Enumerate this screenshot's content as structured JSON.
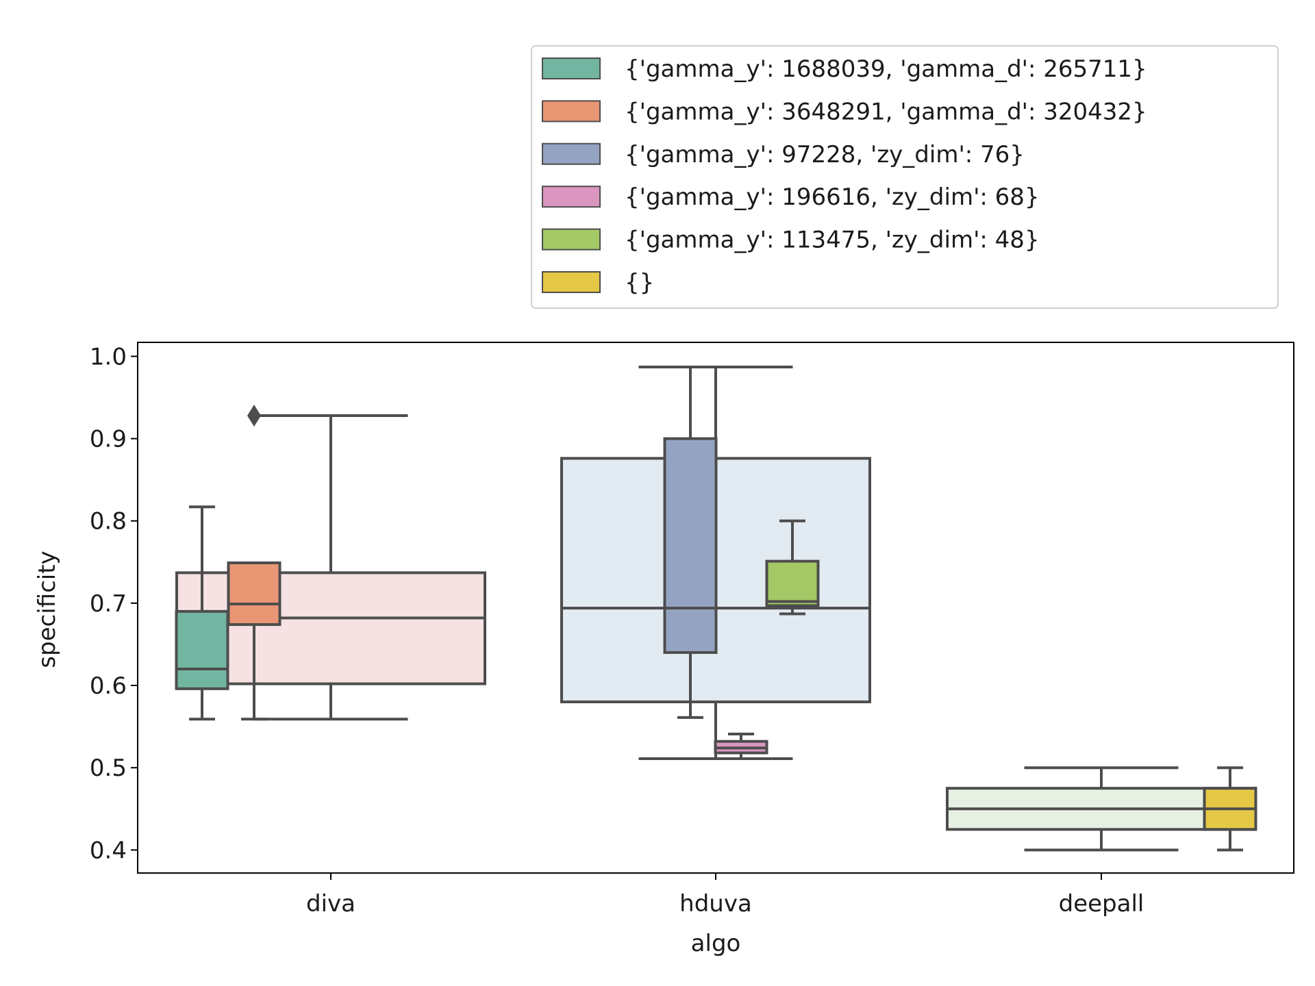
{
  "chart_data": {
    "type": "boxplot",
    "xlabel": "algo",
    "ylabel": "specificity",
    "categories": [
      "diva",
      "hduva",
      "deepall"
    ],
    "ylim": [
      0.372,
      1.017
    ],
    "yticks": [
      0.4,
      0.5,
      0.6,
      0.7,
      0.8,
      0.9,
      1.0
    ],
    "ytick_labels": [
      "0.4",
      "0.5",
      "0.6",
      "0.7",
      "0.8",
      "0.9",
      "1.0"
    ],
    "grid": false,
    "legend_position": "top-right, above plot",
    "legend": [
      {
        "label": "{'gamma_y': 1688039, 'gamma_d': 265711}",
        "color": "#72b6a1"
      },
      {
        "label": "{'gamma_y': 3648291, 'gamma_d': 320432}",
        "color": "#e99675"
      },
      {
        "label": "{'gamma_y': 97228, 'zy_dim': 76}",
        "color": "#95a3c3"
      },
      {
        "label": "{'gamma_y': 196616, 'zy_dim': 68}",
        "color": "#db96c0"
      },
      {
        "label": "{'gamma_y': 113475, 'zy_dim': 48}",
        "color": "#a4c865"
      },
      {
        "label": "{}",
        "color": "#e5c845"
      }
    ],
    "overall_boxes": [
      {
        "category": "diva",
        "color": "#f6e2e2",
        "whislo": 0.559,
        "q1": 0.602,
        "med": 0.682,
        "q3": 0.737,
        "whishi": 0.928,
        "fliers": []
      },
      {
        "category": "hduva",
        "color": "#e2eaf2",
        "whislo": 0.511,
        "q1": 0.58,
        "med": 0.694,
        "q3": 0.876,
        "whishi": 0.987,
        "fliers": []
      },
      {
        "category": "deepall",
        "color": "#e6f1e4",
        "whislo": 0.4,
        "q1": 0.425,
        "med": 0.45,
        "q3": 0.475,
        "whishi": 0.5,
        "fliers": []
      }
    ],
    "series": [
      {
        "name": "{'gamma_y': 1688039, 'gamma_d': 265711}",
        "color": "#72b6a1",
        "category": "diva",
        "whislo": 0.559,
        "q1": 0.596,
        "med": 0.62,
        "q3": 0.69,
        "whishi": 0.817,
        "fliers": []
      },
      {
        "name": "{'gamma_y': 3648291, 'gamma_d': 320432}",
        "color": "#e99675",
        "category": "diva",
        "whislo": 0.559,
        "q1": 0.674,
        "med": 0.699,
        "q3": 0.749,
        "whishi": 0.749,
        "fliers": [
          0.928
        ]
      },
      {
        "name": "{'gamma_y': 97228, 'zy_dim': 76}",
        "color": "#95a3c3",
        "category": "hduva",
        "whislo": 0.561,
        "q1": 0.64,
        "med": 0.694,
        "q3": 0.9,
        "whishi": 0.987,
        "fliers": []
      },
      {
        "name": "{'gamma_y': 196616, 'zy_dim': 68}",
        "color": "#db96c0",
        "category": "hduva",
        "whislo": 0.511,
        "q1": 0.518,
        "med": 0.524,
        "q3": 0.532,
        "whishi": 0.541,
        "fliers": []
      },
      {
        "name": "{'gamma_y': 113475, 'zy_dim': 48}",
        "color": "#a4c865",
        "category": "hduva",
        "whislo": 0.687,
        "q1": 0.697,
        "med": 0.702,
        "q3": 0.751,
        "whishi": 0.8,
        "fliers": []
      },
      {
        "name": "{}",
        "color": "#e5c845",
        "category": "deepall",
        "whislo": 0.4,
        "q1": 0.425,
        "med": 0.45,
        "q3": 0.475,
        "whishi": 0.5,
        "fliers": []
      }
    ]
  }
}
